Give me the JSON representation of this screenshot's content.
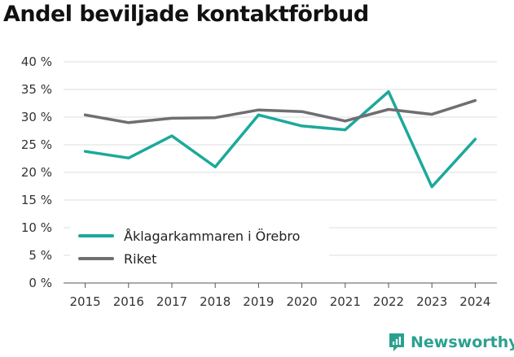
{
  "chart_data": {
    "type": "line",
    "title": "Andel beviljade kontaktförbud",
    "categories": [
      "2015",
      "2016",
      "2017",
      "2018",
      "2019",
      "2020",
      "2021",
      "2022",
      "2023",
      "2024"
    ],
    "y_tick_labels": [
      "0 %",
      "5 %",
      "10 %",
      "15 %",
      "20 %",
      "25 %",
      "30 %",
      "35 %",
      "40 %"
    ],
    "ylim": [
      0,
      40
    ],
    "grid": true,
    "legend_position": "bottom-left",
    "series": [
      {
        "name": "Åklagarkammaren i Örebro",
        "color": "#1ba99a",
        "values": [
          23.8,
          22.6,
          26.6,
          21.0,
          30.4,
          28.4,
          27.7,
          34.6,
          17.4,
          26.0
        ]
      },
      {
        "name": "Riket",
        "color": "#6e6e73",
        "values": [
          30.4,
          29.0,
          29.8,
          29.9,
          31.3,
          31.0,
          29.3,
          31.4,
          30.5,
          33.0
        ]
      }
    ]
  },
  "branding": {
    "name": "Newsworthy",
    "color": "#2aa18f"
  }
}
